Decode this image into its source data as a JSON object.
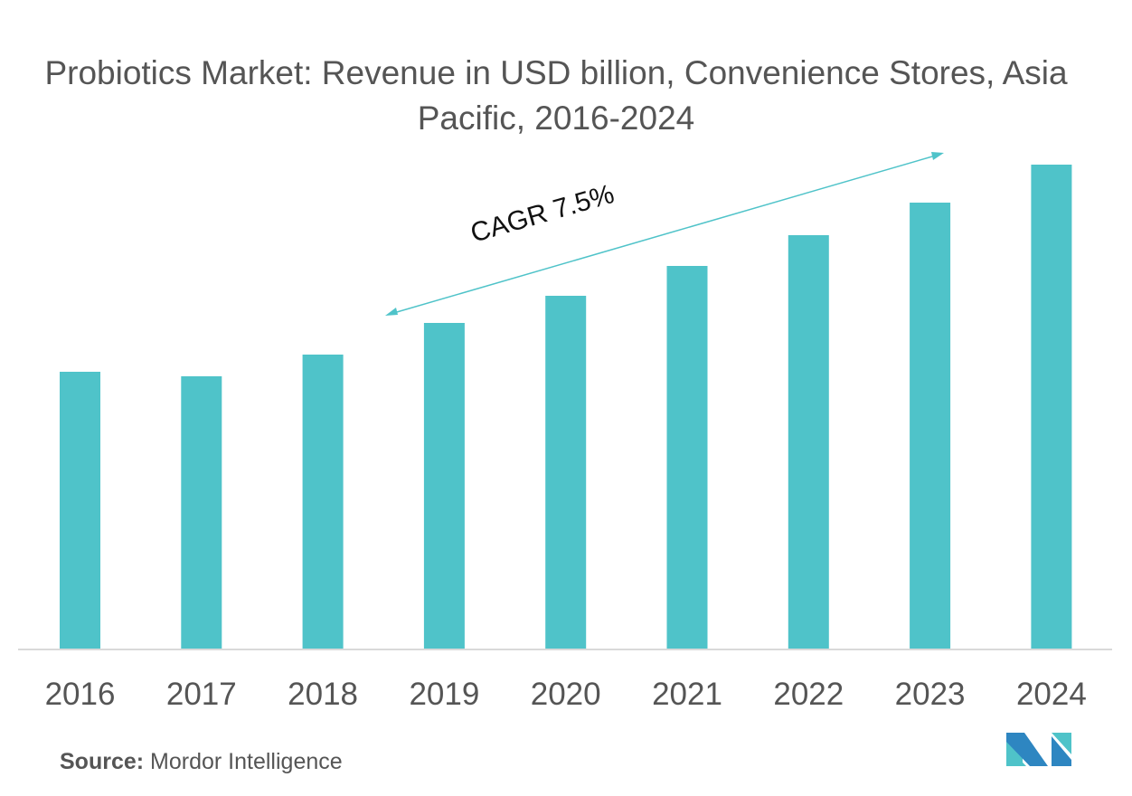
{
  "chart_data": {
    "type": "bar",
    "title": "Probiotics Market: Revenue in USD billion, Convenience Stores, Asia Pacific, 2016-2024",
    "categories": [
      "2016",
      "2017",
      "2018",
      "2019",
      "2020",
      "2021",
      "2022",
      "2023",
      "2024"
    ],
    "values": [
      3.07,
      3.02,
      3.26,
      3.61,
      3.91,
      4.24,
      4.58,
      4.94,
      5.36
    ],
    "xlabel": "",
    "ylabel": "",
    "ylim": [
      0,
      5.36
    ],
    "grid": false,
    "bar_color": "#4fc3c9",
    "annotation": "CAGR 7.5%"
  },
  "source": {
    "label": "Source:",
    "text": "Mordor Intelligence"
  },
  "logo": {
    "text": "MI",
    "colors": [
      "#2e86c1",
      "#4fc3c9"
    ]
  }
}
